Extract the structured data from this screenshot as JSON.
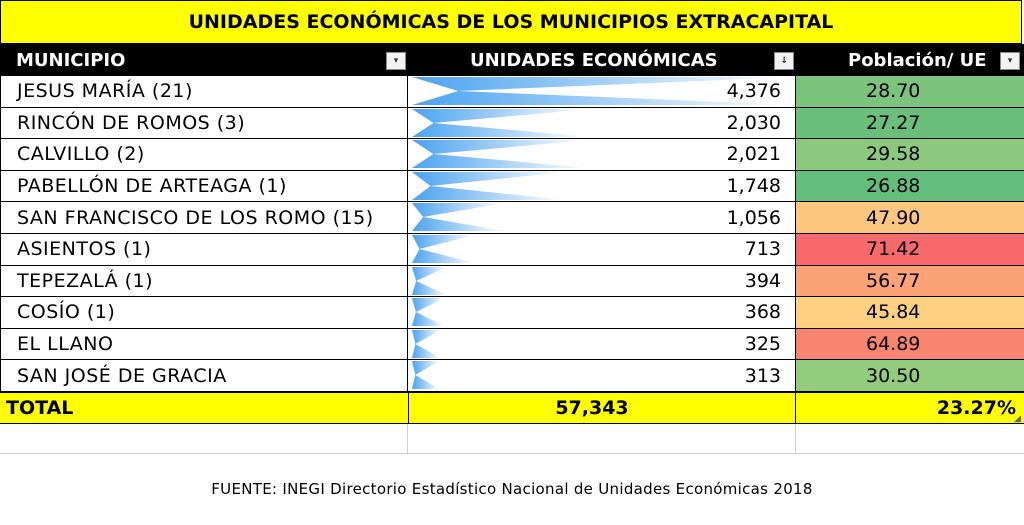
{
  "title": "UNIDADES ECONÓMICAS DE LOS MUNICIPIOS EXTRACAPITAL",
  "headers": {
    "municipio": "MUNICIPIO",
    "unidades": "UNIDADES ECONÓMICAS",
    "poblacion": "Población/ UE"
  },
  "filter_icons": {
    "municipio": "▾",
    "unidades": "↓",
    "poblacion": "▾"
  },
  "rows": [
    {
      "name": "JESUS MARÍA (21)",
      "ue_display": "4,376",
      "ue": 4376,
      "pob": "28.70",
      "color": "#7cc47e"
    },
    {
      "name": "RINCÓN DE ROMOS (3)",
      "ue_display": "2,030",
      "ue": 2030,
      "pob": "27.27",
      "color": "#6bbf7a"
    },
    {
      "name": "CALVILLO (2)",
      "ue_display": "2,021",
      "ue": 2021,
      "pob": "29.58",
      "color": "#8cc97f"
    },
    {
      "name": "PABELLÓN DE ARTEAGA (1)",
      "ue_display": "1,748",
      "ue": 1748,
      "pob": "26.88",
      "color": "#63be7b"
    },
    {
      "name": "SAN FRANCISCO DE LOS ROMO (15)",
      "ue_display": "1,056",
      "ue": 1056,
      "pob": "47.90",
      "color": "#fdc67f"
    },
    {
      "name": "ASIENTOS (1)",
      "ue_display": "713",
      "ue": 713,
      "pob": "71.42",
      "color": "#f8696b"
    },
    {
      "name": "TEPEZALÁ (1)",
      "ue_display": "394",
      "ue": 394,
      "pob": "56.77",
      "color": "#fba276"
    },
    {
      "name": "COSÍO (1)",
      "ue_display": "368",
      "ue": 368,
      "pob": "45.84",
      "color": "#fdd180"
    },
    {
      "name": "EL LLANO",
      "ue_display": "325",
      "ue": 325,
      "pob": "64.89",
      "color": "#f98470"
    },
    {
      "name": "SAN JOSÉ DE GRACIA",
      "ue_display": "313",
      "ue": 313,
      "pob": "30.50",
      "color": "#94cc7e"
    }
  ],
  "total": {
    "label": "TOTAL",
    "ue": "57,343",
    "pob": "23.27%"
  },
  "source": "FUENTE: INEGI  Directorio Estadístico Nacional de Unidades Económicas 2018",
  "bar_color": "#4aa3f0",
  "header_bg": "#000000",
  "highlight_bg": "#ffff00"
}
